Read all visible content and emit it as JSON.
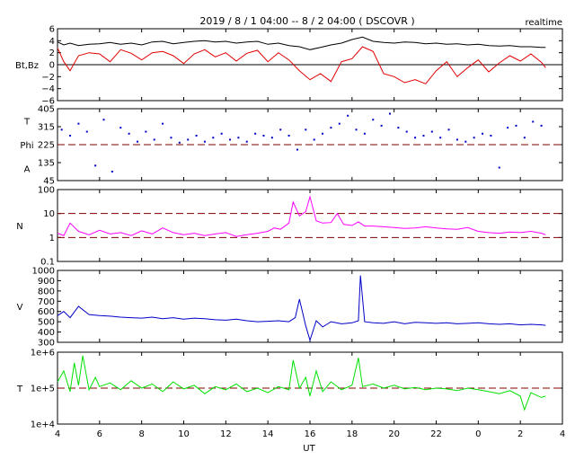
{
  "header": {
    "title": "2019 / 8 / 1   04:00 --  8 / 2  04:00 ( DSCOVR )",
    "mode": "realtime"
  },
  "chart_data": {
    "type": "line",
    "xlabel": "UT",
    "x_range_hours": [
      4,
      28
    ],
    "x_tick_labels": [
      "4",
      "6",
      "8",
      "10",
      "12",
      "14",
      "16",
      "18",
      "20",
      "22",
      "0",
      "2",
      "4"
    ],
    "panels": [
      {
        "id": "bt-bz",
        "ylabels": [
          "Bt,Bz"
        ],
        "scale": "linear",
        "ylim": [
          -6,
          6
        ],
        "tick_values": [
          6,
          4,
          2,
          0,
          -2,
          -4,
          -6
        ],
        "tick_labels": [
          "6",
          "4",
          "2",
          "0",
          "−2",
          "−4",
          "−6"
        ],
        "reference_lines": [
          {
            "value": 0,
            "style": "solid",
            "color": "#000000"
          }
        ],
        "series": [
          {
            "name": "Bt",
            "color": "#000000",
            "style": "line",
            "x": [
              4,
              4.3,
              4.6,
              5,
              5.5,
              6,
              6.5,
              7,
              7.5,
              8,
              8.5,
              9,
              9.5,
              10,
              10.5,
              11,
              11.5,
              12,
              12.5,
              13,
              13.5,
              14,
              14.5,
              15,
              15.5,
              16,
              16.5,
              17,
              17.5,
              18,
              18.5,
              19,
              19.5,
              20,
              20.5,
              21,
              21.5,
              22,
              22.5,
              23,
              23.5,
              24,
              24.5,
              25,
              25.5,
              26,
              26.5,
              27,
              27.2
            ],
            "y": [
              3.8,
              3.3,
              3.6,
              3.2,
              3.4,
              3.5,
              3.7,
              3.4,
              3.6,
              3.3,
              3.8,
              3.9,
              3.5,
              3.7,
              3.9,
              4.0,
              3.8,
              3.9,
              3.6,
              3.8,
              3.9,
              3.4,
              3.6,
              3.2,
              3.0,
              2.5,
              2.9,
              3.3,
              3.6,
              4.2,
              4.6,
              3.9,
              3.7,
              3.6,
              3.8,
              3.7,
              3.5,
              3.6,
              3.4,
              3.5,
              3.3,
              3.4,
              3.2,
              3.1,
              3.2,
              3.0,
              3.0,
              2.9,
              2.9
            ]
          },
          {
            "name": "Bz",
            "color": "#e00000",
            "style": "line",
            "x": [
              4,
              4.3,
              4.6,
              5,
              5.5,
              6,
              6.5,
              7,
              7.5,
              8,
              8.5,
              9,
              9.5,
              10,
              10.5,
              11,
              11.5,
              12,
              12.5,
              13,
              13.5,
              14,
              14.5,
              15,
              15.5,
              16,
              16.5,
              17,
              17.5,
              18,
              18.5,
              19,
              19.5,
              20,
              20.5,
              21,
              21.5,
              22,
              22.5,
              23,
              23.5,
              24,
              24.5,
              25,
              25.5,
              26,
              26.5,
              27,
              27.2
            ],
            "y": [
              2.8,
              0.5,
              -1.0,
              1.5,
              2.0,
              1.8,
              0.5,
              2.5,
              1.9,
              0.8,
              2.0,
              2.2,
              1.5,
              0.2,
              1.8,
              2.5,
              1.3,
              2.0,
              0.6,
              1.9,
              2.4,
              0.5,
              2.0,
              0.8,
              -1.0,
              -2.5,
              -1.5,
              -2.8,
              0.5,
              1.0,
              3.0,
              2.2,
              -1.5,
              -2.0,
              -3.0,
              -2.5,
              -3.2,
              -1.0,
              0.5,
              -2.0,
              -0.5,
              0.8,
              -1.2,
              0.3,
              1.5,
              0.6,
              1.8,
              0.4,
              -0.5
            ]
          }
        ]
      },
      {
        "id": "phi",
        "ylabels": [
          "T",
          "Phi",
          "A"
        ],
        "scale": "linear",
        "ylim": [
          45,
          405
        ],
        "tick_values": [
          405,
          315,
          225,
          135,
          45
        ],
        "tick_labels": [
          "405",
          "315",
          "225",
          "135",
          "45"
        ],
        "reference_lines": [
          {
            "value": 225,
            "style": "dashed",
            "color": "#800000"
          }
        ],
        "series": [
          {
            "name": "Phi",
            "color": "#0000c8",
            "style": "dots",
            "x": [
              4.2,
              4.6,
              5,
              5.4,
              5.8,
              6.2,
              6.6,
              7,
              7.4,
              7.8,
              8.2,
              8.6,
              9,
              9.4,
              9.8,
              10.2,
              10.6,
              11,
              11.4,
              11.8,
              12.2,
              12.6,
              13,
              13.4,
              13.8,
              14.2,
              14.6,
              15,
              15.4,
              15.8,
              16.2,
              16.6,
              17,
              17.4,
              17.8,
              18.2,
              18.6,
              19,
              19.4,
              19.8,
              20.2,
              20.6,
              21,
              21.4,
              21.8,
              22.2,
              22.6,
              23,
              23.4,
              23.8,
              24.2,
              24.6,
              25,
              25.4,
              25.8,
              26.2,
              26.6,
              27
            ],
            "y": [
              300,
              270,
              330,
              290,
              120,
              350,
              90,
              310,
              280,
              240,
              290,
              250,
              330,
              260,
              235,
              250,
              270,
              240,
              260,
              280,
              250,
              260,
              240,
              280,
              270,
              260,
              300,
              270,
              200,
              300,
              250,
              280,
              310,
              330,
              370,
              300,
              280,
              350,
              320,
              380,
              310,
              290,
              260,
              270,
              290,
              260,
              300,
              250,
              240,
              260,
              280,
              270,
              110,
              310,
              320,
              260,
              340,
              320
            ]
          }
        ]
      },
      {
        "id": "density",
        "ylabels": [
          "N"
        ],
        "scale": "log",
        "ylim": [
          0.1,
          100
        ],
        "tick_values": [
          100,
          10,
          1,
          0.1
        ],
        "tick_labels": [
          "100",
          "10",
          "1",
          "0.1"
        ],
        "reference_lines": [
          {
            "value": 10,
            "style": "dashed",
            "color": "#800000"
          },
          {
            "value": 1,
            "style": "dashed",
            "color": "#800000"
          }
        ],
        "series": [
          {
            "name": "N",
            "color": "#ff00ff",
            "style": "line",
            "x": [
              4,
              4.3,
              4.6,
              5,
              5.5,
              6,
              6.5,
              7,
              7.5,
              8,
              8.5,
              9,
              9.5,
              10,
              10.5,
              11,
              11.5,
              12,
              12.5,
              13,
              13.5,
              14,
              14.3,
              14.6,
              15,
              15.2,
              15.5,
              15.8,
              16,
              16.3,
              16.6,
              17,
              17.3,
              17.6,
              18,
              18.3,
              18.6,
              19,
              19.5,
              20,
              20.5,
              21,
              21.5,
              22,
              22.5,
              23,
              23.5,
              24,
              24.5,
              25,
              25.5,
              26,
              26.5,
              27,
              27.2
            ],
            "y": [
              1.5,
              1.2,
              4.0,
              1.8,
              1.3,
              2.0,
              1.4,
              1.6,
              1.2,
              1.9,
              1.4,
              2.5,
              1.6,
              1.3,
              1.5,
              1.2,
              1.4,
              1.6,
              1.1,
              1.3,
              1.5,
              1.8,
              2.5,
              2.2,
              4.0,
              30,
              8,
              12,
              50,
              5,
              4,
              4.2,
              10,
              3.5,
              3.2,
              4.5,
              3,
              3.0,
              2.8,
              2.6,
              2.4,
              2.5,
              2.8,
              2.5,
              2.3,
              2.2,
              2.6,
              1.8,
              1.6,
              1.5,
              1.7,
              1.6,
              1.8,
              1.5,
              1.3
            ]
          }
        ]
      },
      {
        "id": "speed",
        "ylabels": [
          "V"
        ],
        "scale": "linear",
        "ylim": [
          300,
          1000
        ],
        "tick_values": [
          1000,
          900,
          800,
          700,
          600,
          500,
          400,
          300
        ],
        "tick_labels": [
          "1000",
          "900",
          "800",
          "700",
          "600",
          "500",
          "400",
          "300"
        ],
        "reference_lines": [],
        "series": [
          {
            "name": "V",
            "color": "#0000c8",
            "style": "line",
            "x": [
              4,
              4.3,
              4.6,
              5,
              5.5,
              6,
              6.5,
              7,
              7.5,
              8,
              8.5,
              9,
              9.5,
              10,
              10.5,
              11,
              11.5,
              12,
              12.5,
              13,
              13.5,
              14,
              14.5,
              15,
              15.3,
              15.5,
              15.8,
              16,
              16.3,
              16.6,
              17,
              17.5,
              18,
              18.3,
              18.4,
              18.6,
              19,
              19.5,
              20,
              20.5,
              21,
              21.5,
              22,
              22.5,
              23,
              23.5,
              24,
              24.5,
              25,
              25.5,
              26,
              26.5,
              27,
              27.2
            ],
            "y": [
              560,
              600,
              540,
              650,
              570,
              560,
              555,
              545,
              540,
              535,
              545,
              530,
              540,
              525,
              535,
              530,
              520,
              515,
              525,
              510,
              500,
              505,
              510,
              500,
              540,
              720,
              460,
              320,
              510,
              450,
              500,
              480,
              490,
              510,
              950,
              500,
              490,
              485,
              500,
              480,
              495,
              490,
              485,
              490,
              480,
              485,
              490,
              480,
              475,
              480,
              470,
              475,
              470,
              465
            ]
          }
        ]
      },
      {
        "id": "temperature",
        "ylabels": [
          "T"
        ],
        "scale": "log",
        "ylim": [
          10000,
          1000000
        ],
        "tick_values": [
          1000000,
          100000,
          10000
        ],
        "tick_labels": [
          "1e+6",
          "1e+5",
          "1e+4"
        ],
        "reference_lines": [
          {
            "value": 100000,
            "style": "dashed",
            "color": "#800000"
          }
        ],
        "series": [
          {
            "name": "T",
            "color": "#00e000",
            "style": "line",
            "x": [
              4,
              4.3,
              4.6,
              4.8,
              5,
              5.2,
              5.5,
              5.8,
              6,
              6.5,
              7,
              7.5,
              8,
              8.5,
              9,
              9.5,
              10,
              10.5,
              11,
              11.5,
              12,
              12.5,
              13,
              13.5,
              14,
              14.5,
              15,
              15.2,
              15.5,
              15.8,
              16,
              16.3,
              16.6,
              17,
              17.5,
              18,
              18.3,
              18.5,
              19,
              19.5,
              20,
              20.5,
              21,
              21.5,
              22,
              22.5,
              23,
              23.5,
              24,
              24.5,
              25,
              25.5,
              26,
              26.2,
              26.5,
              27,
              27.2
            ],
            "y": [
              150000,
              300000,
              80000,
              500000,
              120000,
              800000,
              90000,
              200000,
              110000,
              140000,
              90000,
              160000,
              100000,
              130000,
              80000,
              150000,
              95000,
              120000,
              70000,
              110000,
              90000,
              130000,
              80000,
              100000,
              75000,
              110000,
              90000,
              600000,
              100000,
              200000,
              60000,
              300000,
              80000,
              150000,
              90000,
              120000,
              700000,
              110000,
              130000,
              100000,
              120000,
              95000,
              105000,
              90000,
              100000,
              95000,
              85000,
              100000,
              90000,
              80000,
              70000,
              85000,
              60000,
              25000,
              75000,
              55000,
              60000
            ]
          }
        ]
      }
    ]
  }
}
